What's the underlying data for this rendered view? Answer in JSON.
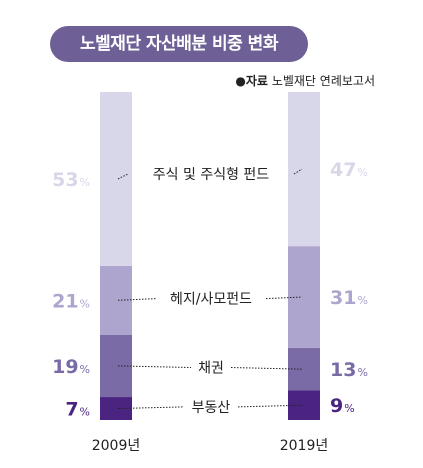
{
  "title": "노벨재단 자산배분 비중 변화",
  "source": {
    "bullet": "●",
    "label": "자료",
    "text": "노벨재단 연례보고서"
  },
  "chart_data": {
    "type": "bar",
    "stacked": true,
    "unit": "%",
    "categories": [
      "2009년",
      "2019년"
    ],
    "series": [
      {
        "name": "부동산",
        "values": [
          7,
          9
        ],
        "color": "#4a2480"
      },
      {
        "name": "채권",
        "values": [
          19,
          13
        ],
        "color": "#7a6aa6"
      },
      {
        "name": "헤지/사모펀드",
        "values": [
          21,
          31
        ],
        "color": "#ada5cd"
      },
      {
        "name": "주식 및 주식형 펀드",
        "values": [
          53,
          47
        ],
        "color": "#d8d7ea"
      }
    ],
    "label_colors": [
      "#4a2480",
      "#7a6aa6",
      "#ada5cd",
      "#d8d7ea"
    ]
  }
}
